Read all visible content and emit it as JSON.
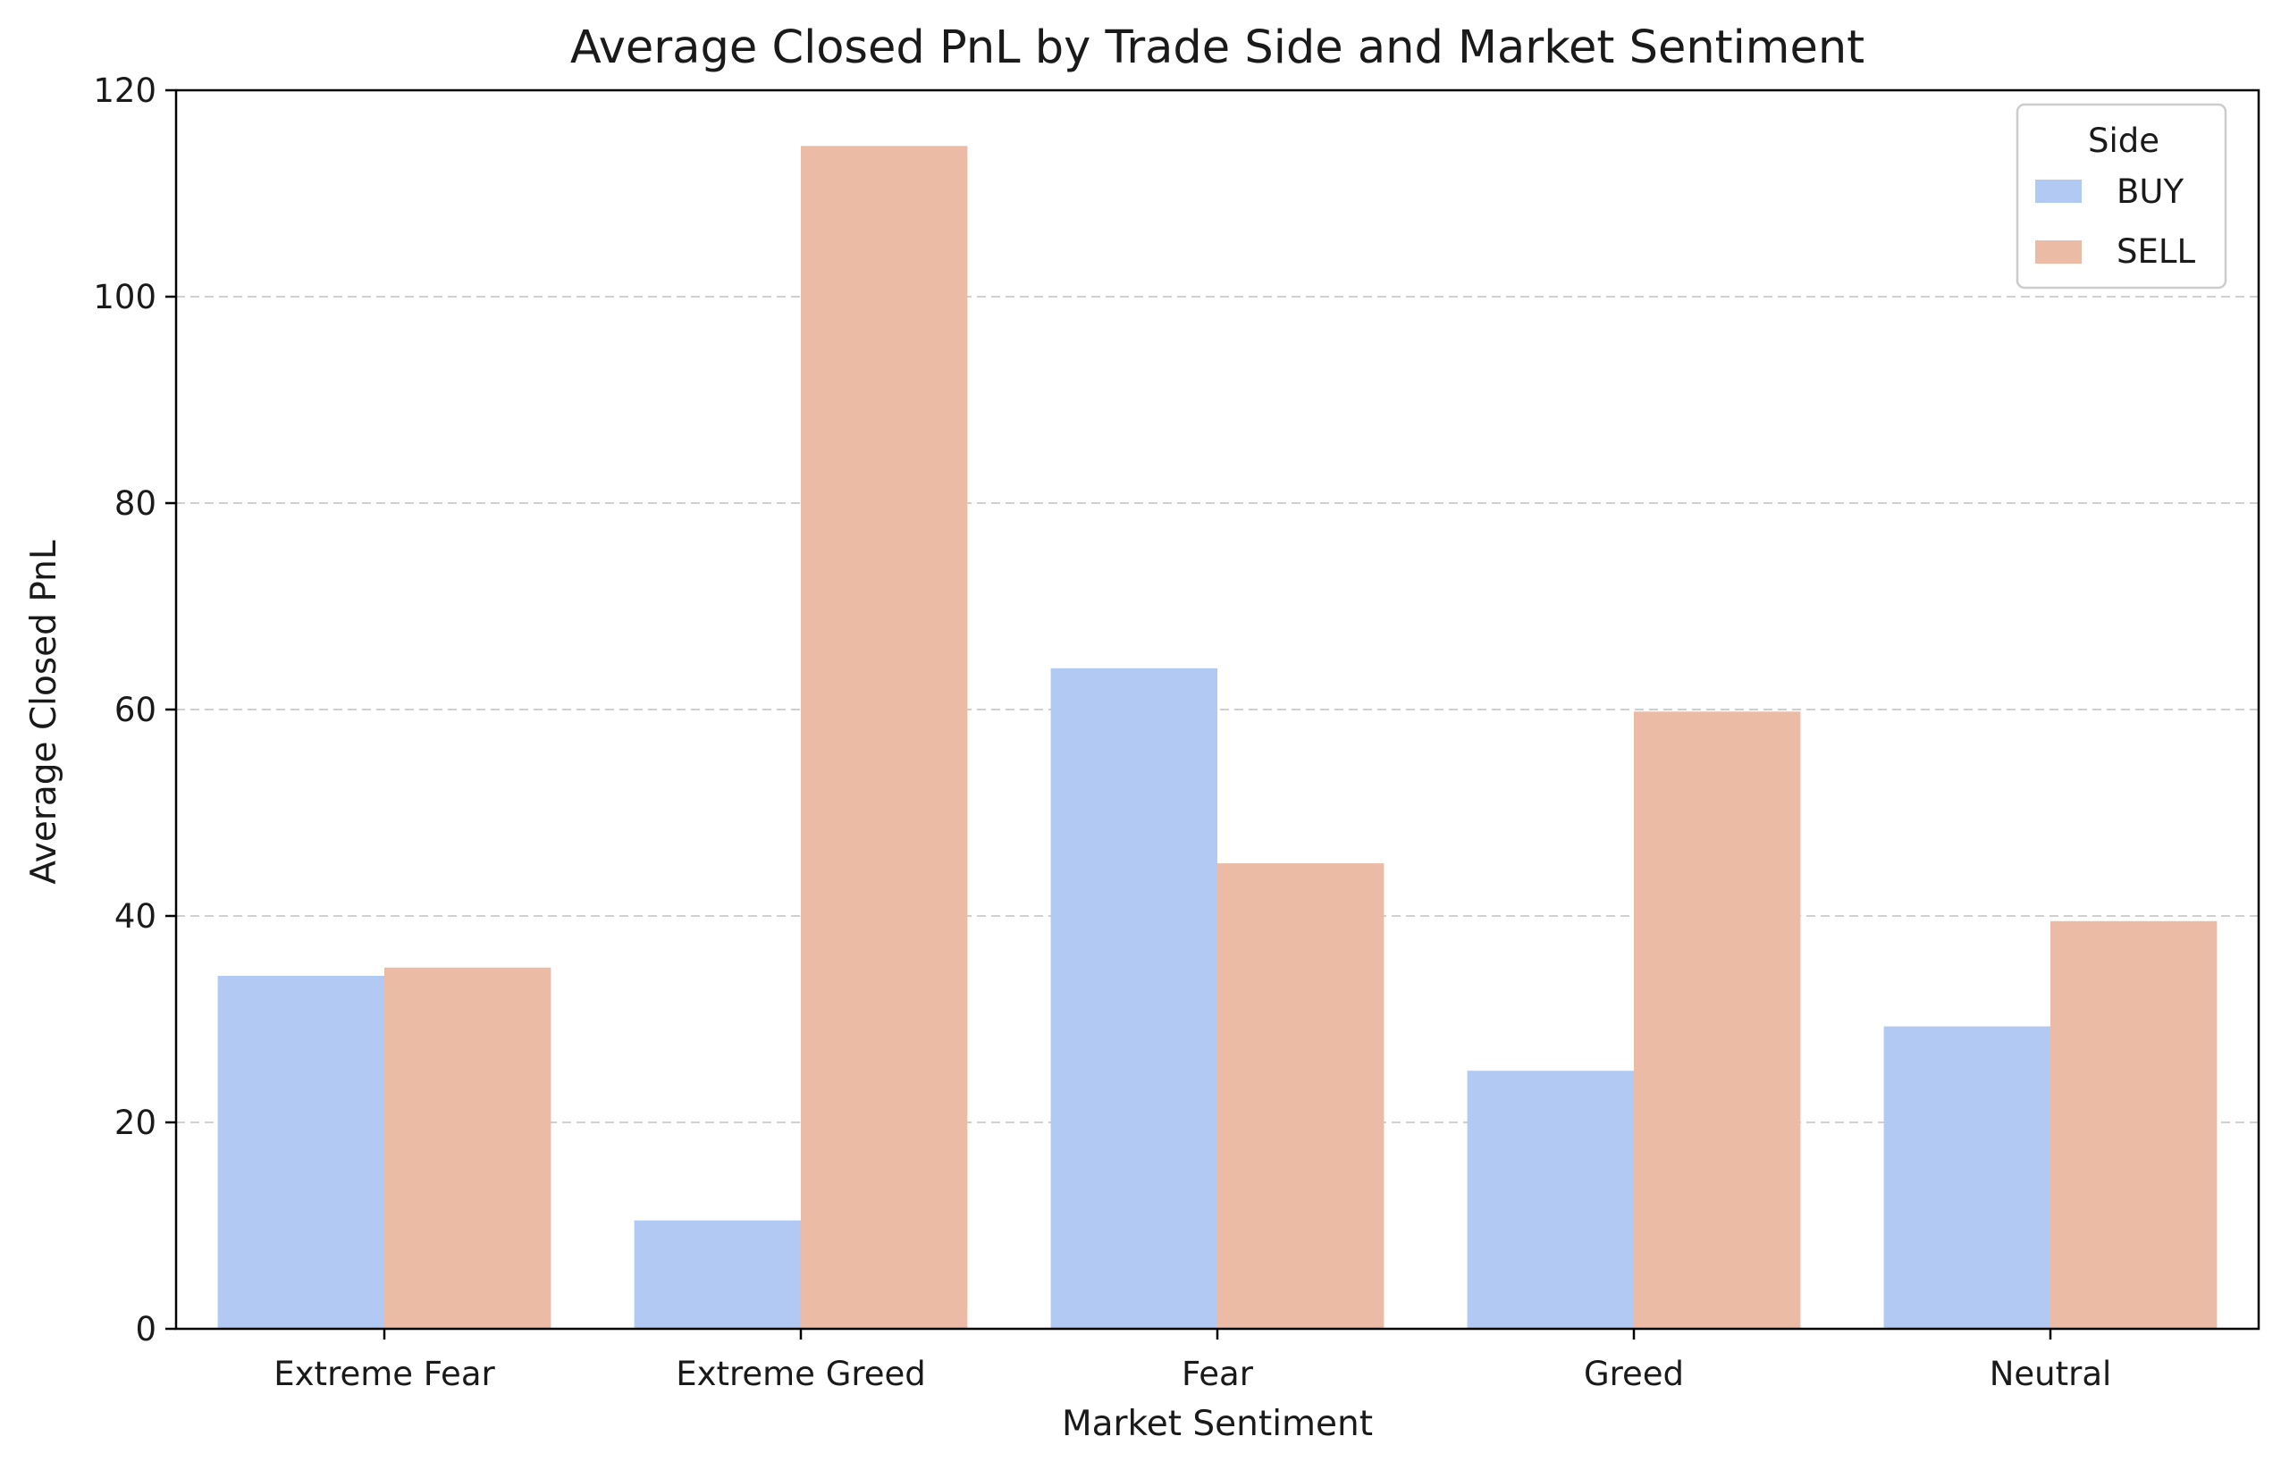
{
  "chart_data": {
    "type": "bar",
    "title": "Average Closed PnL by Trade Side and Market Sentiment",
    "xlabel": "Market Sentiment",
    "ylabel": "Average Closed PnL",
    "categories": [
      "Extreme Fear",
      "Extreme Greed",
      "Fear",
      "Greed",
      "Neutral"
    ],
    "series": [
      {
        "name": "BUY",
        "color": "#b1c9f3",
        "values": [
          34.2,
          10.5,
          64.0,
          25.0,
          29.3
        ]
      },
      {
        "name": "SELL",
        "color": "#ebbba5",
        "values": [
          35.0,
          114.6,
          45.1,
          59.8,
          39.5
        ]
      }
    ],
    "ylim": [
      0,
      120
    ],
    "yticks": [
      "0",
      "20",
      "40",
      "60",
      "80",
      "100",
      "120"
    ],
    "grid": "y-dashed",
    "legend": {
      "title": "Side",
      "position": "top-right"
    }
  }
}
